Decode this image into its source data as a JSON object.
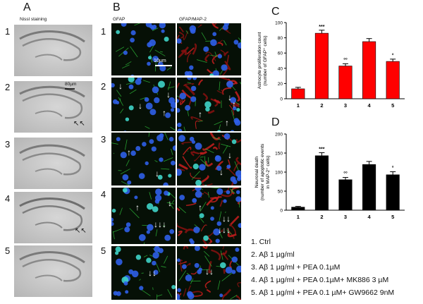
{
  "panels": {
    "A": {
      "letter": "A",
      "header": "Nissl staining",
      "scalebar": "80µm",
      "rows": [
        "1",
        "2",
        "3",
        "4",
        "5"
      ]
    },
    "B": {
      "letter": "B",
      "header_left": "GFAP",
      "header_right": "GFAP/MAP-2",
      "scalebar": "10µm",
      "rows": [
        "1",
        "2",
        "3",
        "4",
        "5"
      ]
    },
    "C": {
      "letter": "C"
    },
    "D": {
      "letter": "D"
    }
  },
  "legend": [
    "1.  Ctrl",
    "2.  Aβ 1 µg/ml",
    "3.  Aβ 1 µg/ml + PEA 0.1µM",
    "4.  Aβ 1 µg/ml + PEA 0.1µM+ MK886 3 µM",
    "5.  Aβ 1 µg/ml + PEA 0.1 µM+ GW9662 9nM"
  ],
  "chart_data": [
    {
      "id": "C",
      "type": "bar",
      "categories": [
        "1",
        "2",
        "3",
        "4",
        "5"
      ],
      "values": [
        13,
        86,
        43,
        75,
        49
      ],
      "errors": [
        2,
        4,
        3,
        4,
        3
      ],
      "annotations": [
        "",
        "***",
        "°°",
        "",
        "°"
      ],
      "ylabel": "Astrocyte proliferation count",
      "ylabel2": "(number of GFAP⁺ cells)",
      "ylim": [
        0,
        100
      ],
      "yticks": [
        0,
        20,
        40,
        60,
        80,
        100
      ],
      "color": "#ff0000"
    },
    {
      "id": "D",
      "type": "bar",
      "categories": [
        "1",
        "2",
        "3",
        "4",
        "5"
      ],
      "values": [
        8,
        143,
        80,
        120,
        93
      ],
      "errors": [
        2,
        8,
        6,
        8,
        8
      ],
      "annotations": [
        "",
        "***",
        "°°",
        "",
        "°"
      ],
      "ylabel": "Neuronal death",
      "ylabel2": "(number of apoptotic events",
      "ylabel3": "in MAP-2⁺ cells)",
      "ylim": [
        0,
        200
      ],
      "yticks": [
        0,
        50,
        100,
        150,
        200
      ],
      "color": "#000000"
    }
  ]
}
